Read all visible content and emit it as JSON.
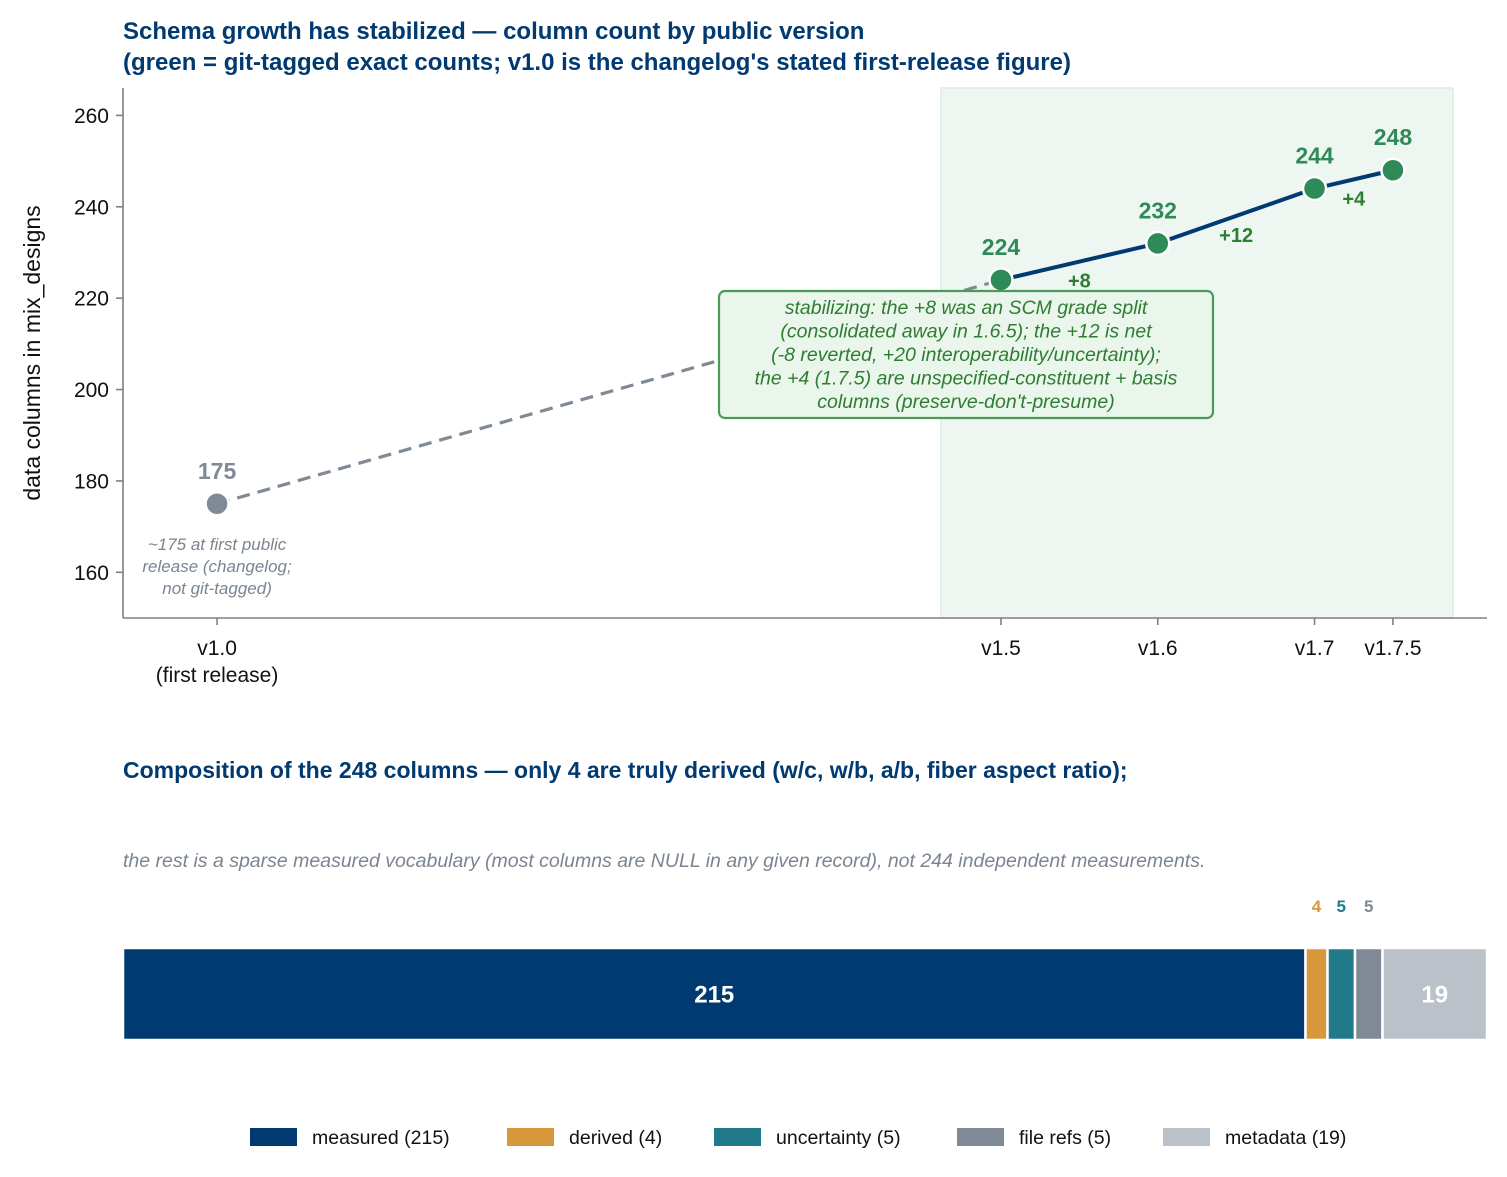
{
  "chart_data": [
    {
      "type": "line",
      "title_line1": "Schema growth has stabilized — column count by public version",
      "title_line2": "(green = git-tagged exact counts; v1.0 is the changelog's stated first-release figure)",
      "ylabel": "data columns in mix_designs",
      "ylim": [
        150,
        266
      ],
      "yticks": [
        160,
        180,
        200,
        220,
        240,
        260
      ],
      "categories": [
        "v1.0",
        "v1.5",
        "v1.6",
        "v1.7",
        "v1.7.5"
      ],
      "category_sublabels": [
        "(first release)",
        "",
        "",
        "",
        ""
      ],
      "x": [
        1.0,
        1.5,
        1.6,
        1.7,
        1.75
      ],
      "points": [
        {
          "version": "v1.0",
          "x": 1.0,
          "y": 175,
          "label": "175",
          "kind": "changelog"
        },
        {
          "version": "v1.5",
          "x": 1.5,
          "y": 224,
          "label": "224",
          "kind": "git-tagged"
        },
        {
          "version": "v1.6",
          "x": 1.6,
          "y": 232,
          "label": "232",
          "kind": "git-tagged"
        },
        {
          "version": "v1.7",
          "x": 1.7,
          "y": 244,
          "label": "244",
          "kind": "git-tagged"
        },
        {
          "version": "v1.7.5",
          "x": 1.75,
          "y": 248,
          "label": "248",
          "kind": "git-tagged"
        }
      ],
      "deltas": [
        "+8",
        "+12",
        "+4"
      ],
      "shaded_region_versions": [
        "v1.5",
        "v1.7.5"
      ],
      "point_note_lines": [
        "~175 at first public",
        "release (changelog;",
        "not git-tagged)"
      ],
      "box_note_lines": [
        "stabilizing: the +8 was an SCM grade split",
        "(consolidated away in 1.6.5); the +12 is net",
        "(-8 reverted, +20 interoperability/uncertainty);",
        "the +4 (1.7.5) are unspecified-constituent + basis",
        "columns (preserve-don't-presume)"
      ],
      "colors": {
        "git_tagged": "#2e8b57",
        "changelog": "#7f8a96",
        "line": "#003a70",
        "dashed": "#7f8a96",
        "shade": "#eef6f1",
        "title": "#003a70"
      }
    },
    {
      "type": "bar",
      "orientation": "horizontal-stacked",
      "title": "Composition of the 248 columns — only 4 are truly derived (w/c, w/b, a/b, fiber aspect ratio);",
      "subtitle": "the rest is a sparse measured vocabulary (most columns are NULL in any given record), not 244 independent measurements.",
      "total": 248,
      "segments": [
        {
          "name": "measured",
          "value": 215,
          "label": "215",
          "legend": "measured (215)",
          "color": "#003a70",
          "label_position": "inside"
        },
        {
          "name": "derived",
          "value": 4,
          "label": "4",
          "legend": "derived (4)",
          "color": "#d9973b",
          "label_position": "above"
        },
        {
          "name": "uncertainty",
          "value": 5,
          "label": "5",
          "legend": "uncertainty (5)",
          "color": "#217a8a",
          "label_position": "above"
        },
        {
          "name": "file refs",
          "value": 5,
          "label": "5",
          "legend": "file refs (5)",
          "color": "#7f8a96",
          "label_position": "above"
        },
        {
          "name": "metadata",
          "value": 19,
          "label": "19",
          "legend": "metadata (19)",
          "color": "#bbc1c9",
          "label_position": "inside"
        }
      ],
      "legend_position": "bottom"
    }
  ]
}
